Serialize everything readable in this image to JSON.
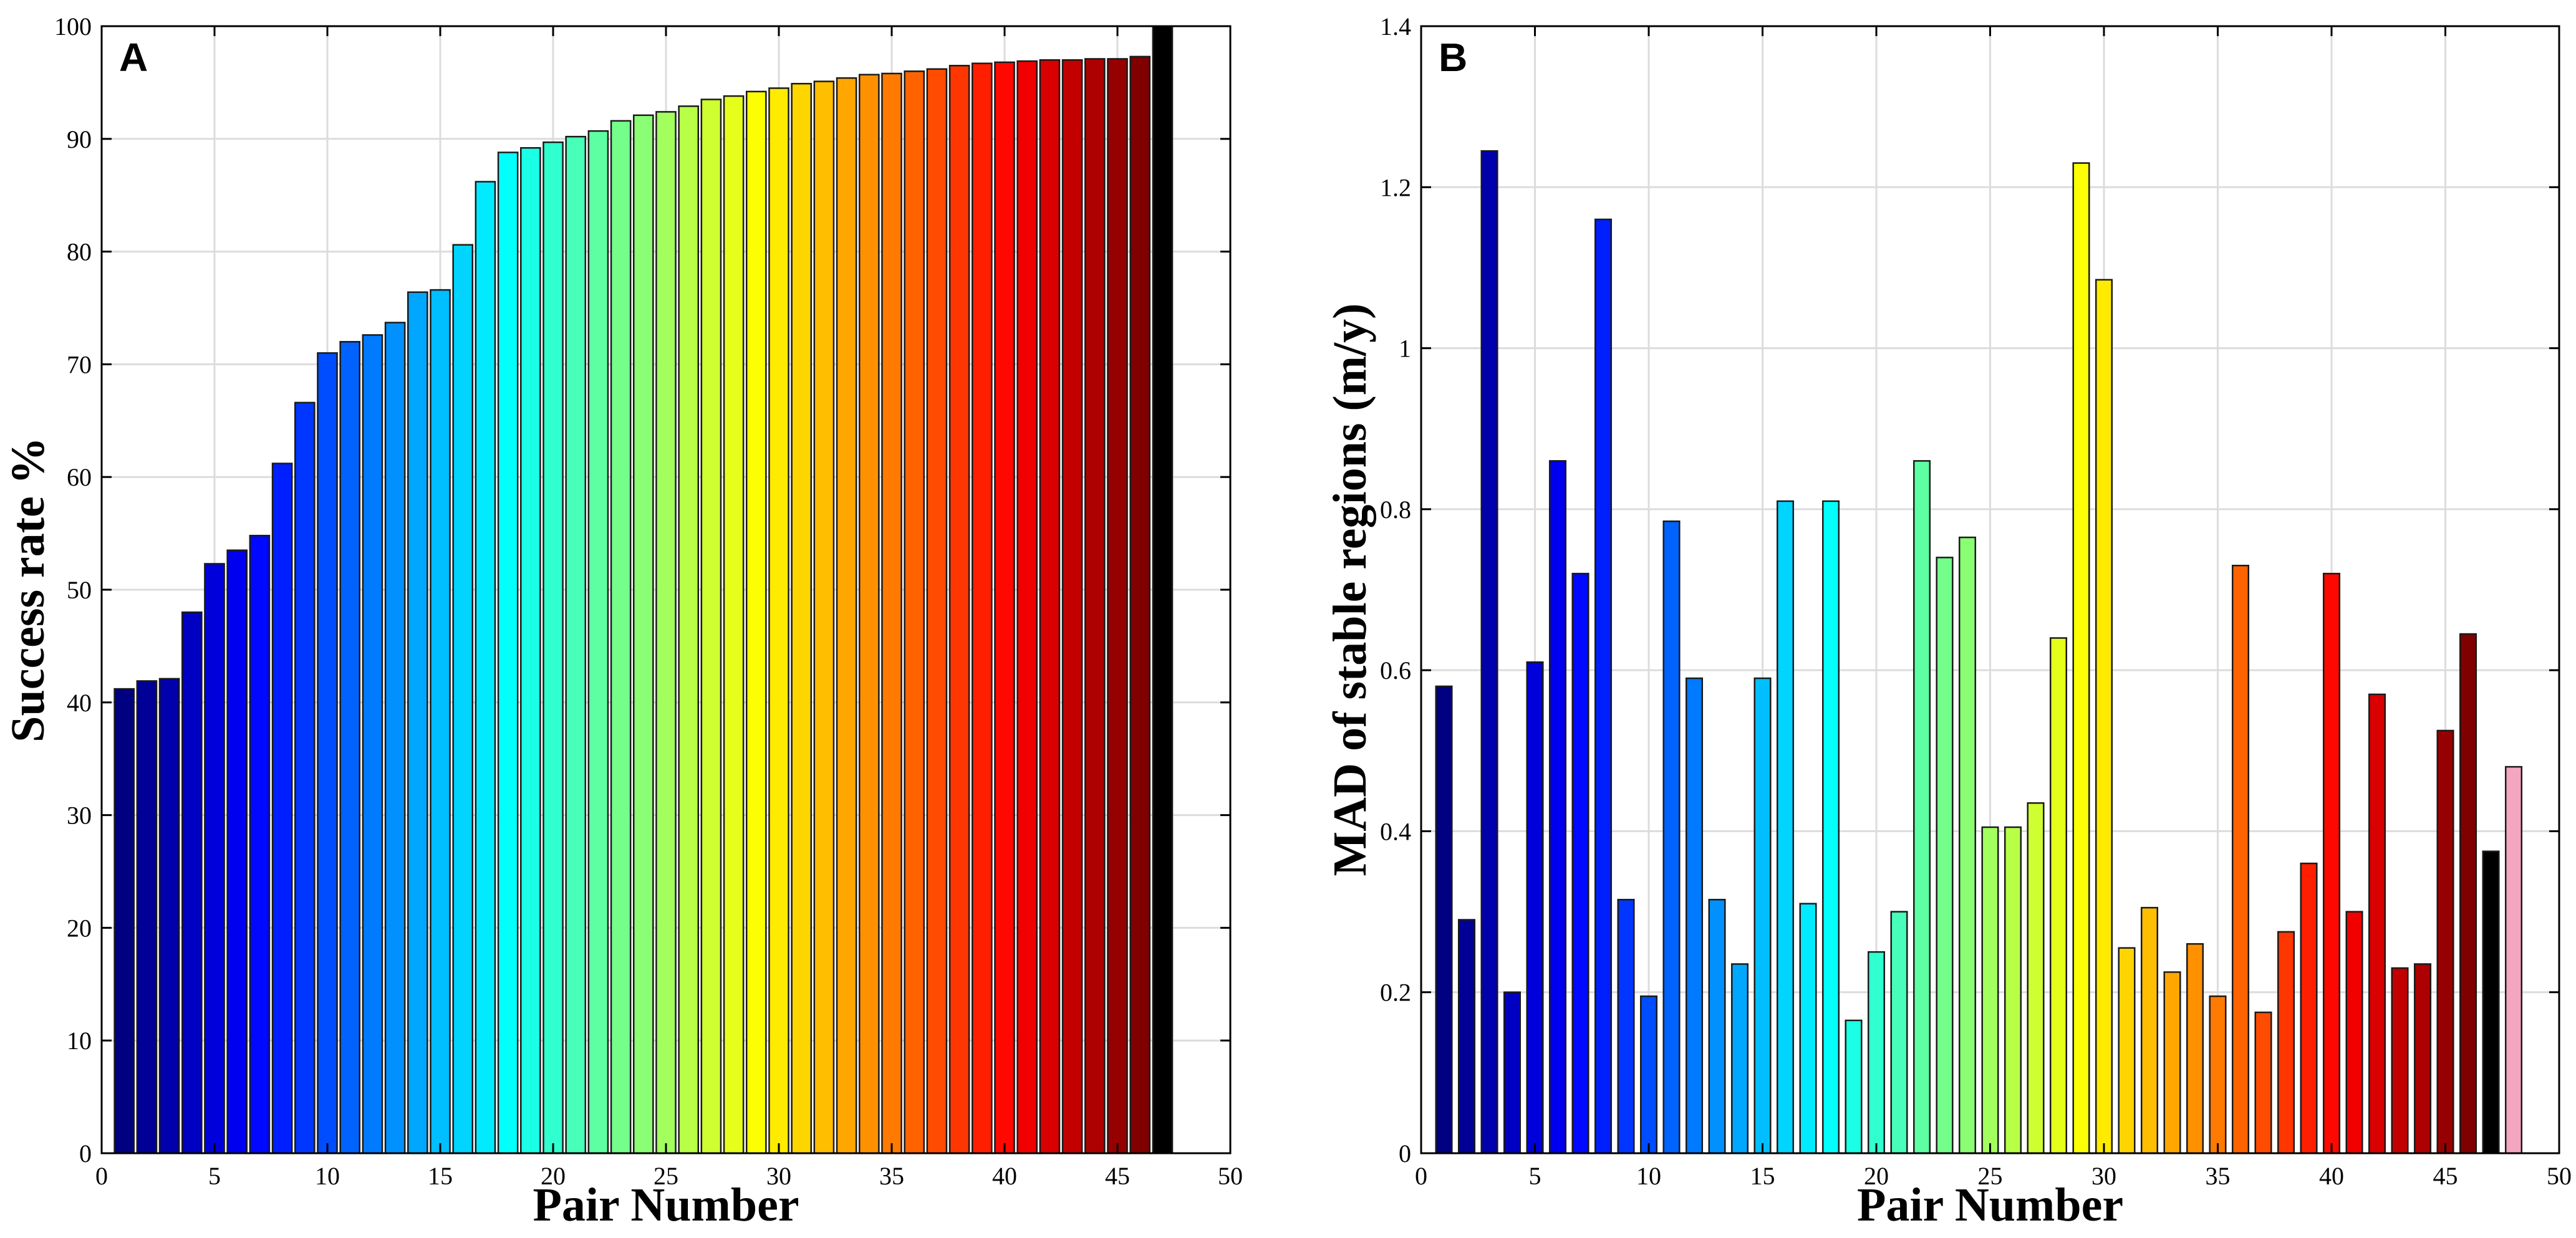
{
  "chart_data": [
    {
      "type": "bar",
      "panel_label": "A",
      "xlabel": "Pair Number",
      "ylabel": "Success rate %",
      "xlim": [
        0,
        50
      ],
      "ylim": [
        0,
        100
      ],
      "xticks": [
        0,
        5,
        10,
        15,
        20,
        25,
        30,
        35,
        40,
        45,
        50
      ],
      "yticks": [
        0,
        10,
        20,
        30,
        40,
        50,
        60,
        70,
        80,
        90,
        100
      ],
      "grid": true,
      "x": [
        1,
        2,
        3,
        4,
        5,
        6,
        7,
        8,
        9,
        10,
        11,
        12,
        13,
        14,
        15,
        16,
        17,
        18,
        19,
        20,
        21,
        22,
        23,
        24,
        25,
        26,
        27,
        28,
        29,
        30,
        31,
        32,
        33,
        34,
        35,
        36,
        37,
        38,
        39,
        40,
        41,
        42,
        43,
        44,
        45,
        46,
        47
      ],
      "values": [
        41.2,
        41.9,
        42.1,
        48.0,
        52.3,
        53.5,
        54.8,
        61.2,
        66.6,
        71.0,
        72.0,
        72.6,
        73.7,
        76.4,
        76.6,
        80.6,
        86.2,
        88.8,
        89.2,
        89.7,
        90.2,
        90.7,
        91.6,
        92.1,
        92.4,
        92.9,
        93.5,
        93.8,
        94.2,
        94.5,
        94.9,
        95.1,
        95.4,
        95.7,
        95.8,
        96.0,
        96.2,
        96.5,
        96.7,
        96.8,
        96.9,
        97.0,
        97.0,
        97.1,
        97.1,
        97.3,
        100.0
      ]
    },
    {
      "type": "bar",
      "panel_label": "B",
      "xlabel": "Pair Number",
      "ylabel": "MAD of stable regions (m/y)",
      "xlim": [
        0,
        50
      ],
      "ylim": [
        0,
        1.4
      ],
      "xticks": [
        0,
        5,
        10,
        15,
        20,
        25,
        30,
        35,
        40,
        45,
        50
      ],
      "yticks": [
        0,
        0.2,
        0.4,
        0.6,
        0.8,
        1,
        1.2,
        1.4
      ],
      "grid": true,
      "x": [
        1,
        2,
        3,
        4,
        5,
        6,
        7,
        8,
        9,
        10,
        11,
        12,
        13,
        14,
        15,
        16,
        17,
        18,
        19,
        20,
        21,
        22,
        23,
        24,
        25,
        26,
        27,
        28,
        29,
        30,
        31,
        32,
        33,
        34,
        35,
        36,
        37,
        38,
        39,
        40,
        41,
        42,
        43,
        44,
        45,
        46,
        47,
        48
      ],
      "values": [
        0.58,
        0.29,
        1.245,
        0.2,
        0.61,
        0.86,
        0.72,
        1.16,
        0.315,
        0.195,
        0.785,
        0.59,
        0.315,
        0.235,
        0.59,
        0.81,
        0.31,
        0.81,
        0.165,
        0.25,
        0.3,
        0.86,
        0.74,
        0.765,
        0.405,
        0.405,
        0.435,
        0.64,
        1.23,
        1.085,
        0.255,
        0.305,
        0.225,
        0.26,
        0.195,
        0.73,
        0.175,
        0.275,
        0.36,
        0.72,
        0.3,
        0.57,
        0.23,
        0.235,
        0.525,
        0.645,
        0.375,
        0.48
      ]
    }
  ]
}
